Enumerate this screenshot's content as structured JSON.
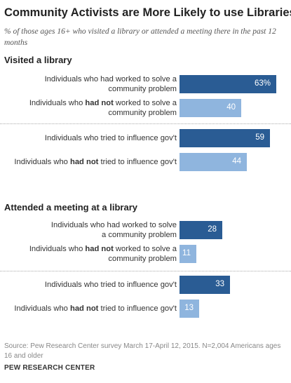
{
  "title": "Community Activists are More Likely to use Libraries",
  "subtitle": "% of those ages 16+ who visited a library or attended a meeting there in the past 12 months",
  "source": "Source: Pew Research Center survey March 17-April 12, 2015. N=2,004 Americans ages 16 and older",
  "brand": "PEW RESEARCH CENTER",
  "colors": {
    "dark": "#2a5c94",
    "light": "#8fb5de"
  },
  "chart_data": {
    "type": "bar",
    "orientation": "horizontal",
    "xlim": [
      0,
      100
    ],
    "groups": [
      {
        "name": "Visited a library",
        "bars": [
          {
            "pre": "Individuals who had worked to solve a",
            "bold": "",
            "post": "community problem",
            "value": 63,
            "label": "63%",
            "shade": "dark"
          },
          {
            "pre": "Individuals who ",
            "bold": "had not",
            "post": " worked to solve a community problem",
            "value": 40,
            "label": "40",
            "shade": "light"
          },
          {
            "pre": "Individuals who tried to influence gov't",
            "bold": "",
            "post": "",
            "value": 59,
            "label": "59",
            "shade": "dark"
          },
          {
            "pre": "Individuals who ",
            "bold": "had not",
            "post": " tried to influence gov't",
            "value": 44,
            "label": "44",
            "shade": "light"
          }
        ]
      },
      {
        "name": "Attended a meeting at a library",
        "bars": [
          {
            "pre": "Individuals who had worked to solve",
            "bold": "",
            "post": "a community problem",
            "value": 28,
            "label": "28",
            "shade": "dark"
          },
          {
            "pre": "Individuals who ",
            "bold": "had not",
            "post": " worked to solve a community problem",
            "value": 11,
            "label": "11",
            "shade": "light"
          },
          {
            "pre": "Individuals who tried to influence gov't",
            "bold": "",
            "post": "",
            "value": 33,
            "label": "33",
            "shade": "dark"
          },
          {
            "pre": "Individuals who ",
            "bold": "had not",
            "post": " tried to influence gov't",
            "value": 13,
            "label": "13",
            "shade": "light"
          }
        ]
      }
    ]
  }
}
